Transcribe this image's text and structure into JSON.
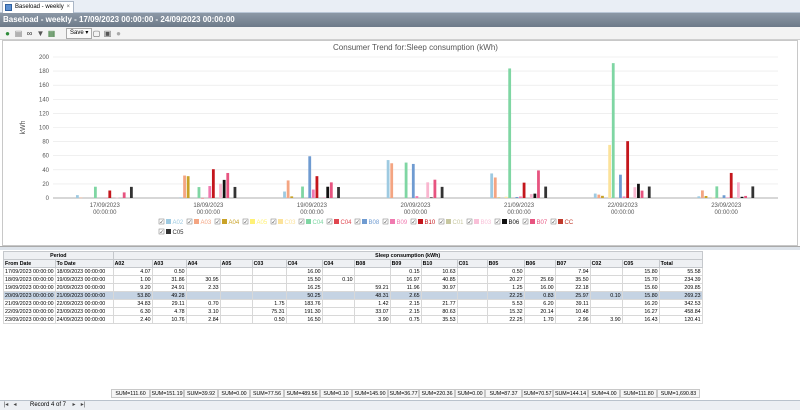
{
  "tab": {
    "label": "Baseload - weekly",
    "close": "×"
  },
  "title": "Baseload - weekly - 17/09/2023 00:00:00 - 24/09/2023 00:00:00",
  "toolbar": {
    "save_label": "Save ▾",
    "icons": [
      "refresh-icon",
      "document-icon",
      "binoculars-icon",
      "filter-icon",
      "export-icon",
      "print-preview-icon",
      "print-icon",
      "stop-icon"
    ]
  },
  "chart_data": {
    "type": "bar",
    "title": "Consumer Trend for:Sleep consumption (kWh)",
    "ylabel": "kWh",
    "ylim": [
      0,
      200
    ],
    "yticks": [
      0,
      20,
      40,
      60,
      80,
      100,
      120,
      140,
      160,
      180,
      200
    ],
    "categories": [
      "17/09/2023 00:00:00",
      "18/09/2023 00:00:00",
      "19/09/2023 00:00:00",
      "20/09/2023 00:00:00",
      "21/09/2023 00:00:00",
      "22/09/2023 00:00:00",
      "23/09/2023 00:00:00"
    ],
    "grid": true,
    "legend_position": "bottom",
    "series": [
      {
        "name": "A02",
        "color": "#9ecae1",
        "values": [
          4.07,
          1.0,
          9.2,
          53.8,
          34.83,
          6.3,
          2.4
        ]
      },
      {
        "name": "A03",
        "color": "#f4a582",
        "values": [
          0.5,
          31.86,
          24.91,
          49.28,
          29.11,
          4.78,
          10.76
        ]
      },
      {
        "name": "A04",
        "color": "#c9a227",
        "values": [
          0,
          30.95,
          2.33,
          0,
          0.7,
          3.1,
          2.84
        ]
      },
      {
        "name": "A05",
        "color": "#fff176",
        "values": [
          0,
          0,
          0,
          0,
          0,
          0,
          0
        ]
      },
      {
        "name": "C03",
        "color": "#fce29a",
        "values": [
          0,
          0,
          0,
          0,
          1.75,
          75.31,
          0.5
        ]
      },
      {
        "name": "C04",
        "color": "#7fd6a3",
        "values": [
          16.0,
          15.5,
          16.25,
          50.25,
          183.76,
          191.3,
          16.5
        ]
      },
      {
        "name": "C04",
        "color": "#e0464f",
        "values": [
          0,
          0.1,
          0,
          0,
          0,
          0,
          0
        ]
      },
      {
        "name": "B08",
        "color": "#6f9bd1",
        "values": [
          0,
          0,
          59.21,
          48.31,
          1.42,
          33.07,
          3.9
        ]
      },
      {
        "name": "B09",
        "color": "#f07ab0",
        "values": [
          0.15,
          16.97,
          11.96,
          2.65,
          2.15,
          2.15,
          0.75
        ]
      },
      {
        "name": "B10",
        "color": "#c4161c",
        "values": [
          10.63,
          40.85,
          30.97,
          0,
          21.77,
          80.63,
          35.53
        ]
      },
      {
        "name": "C01",
        "color": "#c7c7a0",
        "values": [
          0,
          0,
          0,
          0,
          0,
          0,
          0
        ]
      },
      {
        "name": "B05",
        "color": "#f9b6cf",
        "values": [
          0.5,
          20.27,
          1.25,
          22.25,
          5.53,
          15.32,
          22.25
        ]
      },
      {
        "name": "B06",
        "color": "#111111",
        "values": [
          0,
          25.69,
          16.0,
          0.83,
          6.2,
          20.14,
          1.7
        ]
      },
      {
        "name": "B07",
        "color": "#e75480",
        "values": [
          7.94,
          35.5,
          22.18,
          25.97,
          39.11,
          10.48,
          2.96
        ]
      },
      {
        "name": "CC",
        "color": "#c0392b",
        "values": [
          0,
          0,
          0,
          0,
          0,
          0,
          0
        ]
      },
      {
        "name": "C05",
        "color": "#333333",
        "values": [
          15.8,
          15.7,
          15.6,
          15.8,
          16.2,
          16.27,
          16.43
        ]
      }
    ],
    "legend": [
      {
        "name": "A02",
        "color": "#9ecae1"
      },
      {
        "name": "A03",
        "color": "#f4a582"
      },
      {
        "name": "A04",
        "color": "#c9a227"
      },
      {
        "name": "A05",
        "color": "#fff176"
      },
      {
        "name": "C03",
        "color": "#fce29a"
      },
      {
        "name": "C04",
        "color": "#7fd6a3"
      },
      {
        "name": "C04",
        "color": "#e0464f"
      },
      {
        "name": "B08",
        "color": "#6f9bd1"
      },
      {
        "name": "B09",
        "color": "#f07ab0"
      },
      {
        "name": "B10",
        "color": "#c4161c"
      },
      {
        "name": "C01",
        "color": "#c7c7a0"
      },
      {
        "name": "B03",
        "color": "#f9c0d8"
      },
      {
        "name": "B06",
        "color": "#111111"
      },
      {
        "name": "B07",
        "color": "#e75480"
      },
      {
        "name": "CC",
        "color": "#c0392b"
      },
      {
        "name": "C05",
        "color": "#333333"
      }
    ]
  },
  "grid": {
    "group_headers": {
      "period": "Period",
      "consumption": "Sleep consumption (kWh)"
    },
    "columns": [
      "From Date",
      "To Date",
      "A02",
      "A03",
      "A04",
      "A05",
      "C03",
      "C04",
      "C04",
      "B08",
      "B09",
      "B10",
      "C01",
      "B05",
      "B06",
      "B07",
      "C02",
      "C05",
      "Total"
    ],
    "rows": [
      [
        "17/09/2023 00:00:00",
        "18/09/2023 00:00:00",
        "4.07",
        "0.50",
        "",
        "",
        "",
        "16.00",
        "",
        "",
        "0.15",
        "10.63",
        "",
        "0.50",
        "",
        "7.94",
        "",
        "15.80",
        "55.58"
      ],
      [
        "18/09/2023 00:00:00",
        "19/09/2023 00:00:00",
        "1.00",
        "31.86",
        "30.95",
        "",
        "",
        "15.50",
        "0.10",
        "",
        "16.97",
        "40.85",
        "",
        "20.27",
        "25.69",
        "35.50",
        "",
        "15.70",
        "234.39"
      ],
      [
        "19/09/2023 00:00:00",
        "20/09/2023 00:00:00",
        "9.20",
        "24.91",
        "2.33",
        "",
        "",
        "16.25",
        "",
        "59.21",
        "11.96",
        "30.97",
        "",
        "1.25",
        "16.00",
        "22.18",
        "",
        "15.60",
        "209.85"
      ],
      [
        "20/09/2023 00:00:00",
        "21/09/2023 00:00:00",
        "53.80",
        "49.28",
        "",
        "",
        "",
        "50.25",
        "",
        "48.31",
        "2.65",
        "",
        "",
        "22.25",
        "0.83",
        "25.97",
        "0.10",
        "15.80",
        "269.23"
      ],
      [
        "21/09/2023 00:00:00",
        "22/09/2023 00:00:00",
        "34.83",
        "29.11",
        "0.70",
        "",
        "1.75",
        "183.76",
        "",
        "1.42",
        "2.15",
        "21.77",
        "",
        "5.53",
        "6.20",
        "39.11",
        "",
        "16.20",
        "342.53"
      ],
      [
        "22/09/2023 00:00:00",
        "23/09/2023 00:00:00",
        "6.30",
        "4.78",
        "3.10",
        "",
        "75.31",
        "191.30",
        "",
        "33.07",
        "2.15",
        "80.63",
        "",
        "15.32",
        "20.14",
        "10.48",
        "",
        "16.27",
        "458.84"
      ],
      [
        "23/09/2023 00:00:00",
        "24/09/2023 00:00:00",
        "2.40",
        "10.76",
        "2.84",
        "",
        "0.50",
        "16.50",
        "",
        "3.90",
        "0.75",
        "35.53",
        "",
        "22.25",
        "1.70",
        "2.96",
        "3.90",
        "16.43",
        "120.41"
      ]
    ],
    "selected_row": 3,
    "sums": [
      "SUM=111.60",
      "SUM=151.19",
      "SUM=39.92",
      "SUM=0.00",
      "SUM=77.56",
      "SUM=489.56",
      "SUM=0.10",
      "SUM=145.90",
      "SUM=36.77",
      "SUM=220.36",
      "SUM=0.00",
      "SUM=87.37",
      "SUM=70.57",
      "SUM=144.14",
      "SUM=4.00",
      "SUM=111.80",
      "SUM=1,690.83"
    ]
  },
  "navigator": {
    "record_text": "Record 4 of 7",
    "first": "|◂",
    "prev": "◂",
    "next": "▸",
    "last": "▸|"
  }
}
